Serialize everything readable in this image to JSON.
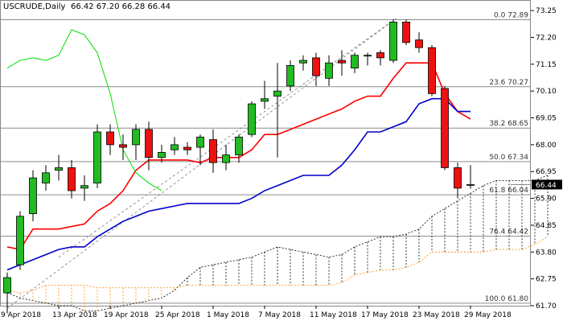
{
  "chart_data": {
    "type": "candlestick",
    "header": {
      "symbol": "USCRUDE,Daily",
      "ohlc_text": "66.42 67.20 66.28 66.44"
    },
    "y_axis": {
      "min": 61.7,
      "max": 73.6,
      "ticks": [
        "73.25",
        "72.20",
        "71.15",
        "70.10",
        "69.05",
        "68.00",
        "66.95",
        "65.90",
        "64.85",
        "63.80",
        "62.75",
        "61.70"
      ]
    },
    "current_price": "66.44",
    "x_axis_labels": [
      {
        "text": "9 Apr 2018",
        "index": 0
      },
      {
        "text": "13 Apr 2018",
        "index": 4
      },
      {
        "text": "19 Apr 2018",
        "index": 8
      },
      {
        "text": "25 Apr 2018",
        "index": 12
      },
      {
        "text": "1 May 2018",
        "index": 16
      },
      {
        "text": "7 May 2018",
        "index": 20
      },
      {
        "text": "11 May 2018",
        "index": 24
      },
      {
        "text": "17 May 2018",
        "index": 28
      },
      {
        "text": "23 May 2018",
        "index": 32
      },
      {
        "text": "29 May 2018",
        "index": 36
      }
    ],
    "fib_levels": [
      {
        "label": "0.0 72.89",
        "price": 72.89
      },
      {
        "label": "23.6 70.27",
        "price": 70.27
      },
      {
        "label": "38.2 68.65",
        "price": 68.65
      },
      {
        "label": "50.0 67.34",
        "price": 67.34
      },
      {
        "label": "61.8 66.04",
        "price": 66.04
      },
      {
        "label": "76.4 64.42",
        "price": 64.42
      },
      {
        "label": "100.0 61.80",
        "price": 61.8
      }
    ],
    "candles": [
      {
        "o": 62.2,
        "h": 63.0,
        "l": 61.4,
        "c": 62.8
      },
      {
        "o": 63.3,
        "h": 65.4,
        "l": 63.1,
        "c": 65.2
      },
      {
        "o": 65.3,
        "h": 67.0,
        "l": 65.0,
        "c": 66.7
      },
      {
        "o": 66.5,
        "h": 67.2,
        "l": 66.2,
        "c": 66.9
      },
      {
        "o": 67.0,
        "h": 67.6,
        "l": 66.6,
        "c": 67.1
      },
      {
        "o": 67.1,
        "h": 67.4,
        "l": 65.9,
        "c": 66.2
      },
      {
        "o": 66.3,
        "h": 66.8,
        "l": 65.8,
        "c": 66.4
      },
      {
        "o": 66.5,
        "h": 68.8,
        "l": 66.3,
        "c": 68.5
      },
      {
        "o": 68.5,
        "h": 68.8,
        "l": 67.6,
        "c": 68.0
      },
      {
        "o": 68.0,
        "h": 68.4,
        "l": 67.4,
        "c": 67.9
      },
      {
        "o": 68.0,
        "h": 68.8,
        "l": 67.4,
        "c": 68.6
      },
      {
        "o": 68.6,
        "h": 68.9,
        "l": 67.0,
        "c": 67.5
      },
      {
        "o": 67.5,
        "h": 68.0,
        "l": 67.3,
        "c": 67.7
      },
      {
        "o": 67.8,
        "h": 68.3,
        "l": 67.6,
        "c": 68.0
      },
      {
        "o": 67.9,
        "h": 68.1,
        "l": 67.6,
        "c": 67.8
      },
      {
        "o": 67.9,
        "h": 68.4,
        "l": 67.2,
        "c": 68.3
      },
      {
        "o": 68.2,
        "h": 68.6,
        "l": 66.9,
        "c": 67.3
      },
      {
        "o": 67.3,
        "h": 68.0,
        "l": 67.0,
        "c": 67.6
      },
      {
        "o": 67.6,
        "h": 68.4,
        "l": 67.3,
        "c": 68.3
      },
      {
        "o": 68.4,
        "h": 69.7,
        "l": 68.3,
        "c": 69.6
      },
      {
        "o": 69.7,
        "h": 70.5,
        "l": 69.4,
        "c": 69.8
      },
      {
        "o": 69.9,
        "h": 71.2,
        "l": 67.5,
        "c": 70.1
      },
      {
        "o": 70.3,
        "h": 71.3,
        "l": 70.1,
        "c": 71.1
      },
      {
        "o": 71.2,
        "h": 71.5,
        "l": 70.9,
        "c": 71.3
      },
      {
        "o": 71.4,
        "h": 71.6,
        "l": 70.3,
        "c": 70.7
      },
      {
        "o": 70.6,
        "h": 71.5,
        "l": 70.3,
        "c": 71.2
      },
      {
        "o": 71.3,
        "h": 71.7,
        "l": 70.7,
        "c": 71.2
      },
      {
        "o": 71.0,
        "h": 71.6,
        "l": 70.8,
        "c": 71.5
      },
      {
        "o": 71.5,
        "h": 71.6,
        "l": 71.1,
        "c": 71.5
      },
      {
        "o": 71.6,
        "h": 71.7,
        "l": 71.1,
        "c": 71.4
      },
      {
        "o": 71.3,
        "h": 72.9,
        "l": 71.2,
        "c": 72.8
      },
      {
        "o": 72.8,
        "h": 72.9,
        "l": 71.9,
        "c": 72.0
      },
      {
        "o": 72.1,
        "h": 72.4,
        "l": 71.6,
        "c": 71.8
      },
      {
        "o": 71.8,
        "h": 71.9,
        "l": 69.9,
        "c": 70.0
      },
      {
        "o": 70.2,
        "h": 70.3,
        "l": 67.0,
        "c": 67.1
      },
      {
        "o": 67.1,
        "h": 67.3,
        "l": 65.9,
        "c": 66.3
      },
      {
        "o": 66.42,
        "h": 67.2,
        "l": 66.28,
        "c": 66.44
      }
    ],
    "series": [
      {
        "name": "",
        "color": "#ff0000",
        "start": 0,
        "values": [
          64.0,
          63.9,
          64.7,
          64.7,
          64.7,
          64.8,
          64.9,
          65.4,
          65.7,
          66.2,
          67.0,
          67.4,
          67.4,
          67.4,
          67.4,
          67.3,
          67.5,
          67.5,
          67.5,
          67.8,
          68.4,
          68.4,
          68.6,
          68.8,
          69.0,
          69.2,
          69.4,
          69.7,
          69.9,
          69.9,
          70.6,
          71.2,
          71.2,
          71.2,
          70.0,
          69.3,
          69.0
        ]
      },
      {
        "name": "",
        "color": "#0000cc",
        "start": 0,
        "values": [
          63.1,
          63.3,
          63.5,
          63.7,
          63.9,
          64.0,
          64.0,
          64.4,
          64.7,
          65.0,
          65.2,
          65.4,
          65.5,
          65.6,
          65.7,
          65.7,
          65.7,
          65.7,
          65.7,
          65.9,
          66.2,
          66.4,
          66.6,
          66.8,
          66.8,
          66.8,
          67.2,
          67.8,
          68.5,
          68.5,
          68.7,
          68.9,
          69.6,
          69.8,
          69.8,
          69.3,
          69.3
        ]
      },
      {
        "name": "",
        "color": "#00dd00",
        "start": 0,
        "values": [
          71.0,
          71.3,
          71.4,
          71.3,
          71.5,
          72.5,
          72.3,
          71.6,
          70.0,
          67.8,
          66.9,
          66.5,
          66.2
        ]
      }
    ],
    "cloud": {
      "start": 0,
      "span_a": [
        62.2,
        62.0,
        61.9,
        61.8,
        61.7,
        61.7,
        61.5,
        61.5,
        61.6,
        61.7,
        61.8,
        61.9,
        62.0,
        62.3,
        62.8,
        63.2,
        63.3,
        63.4,
        63.5,
        63.6,
        63.8,
        64.0,
        63.9,
        63.8,
        63.7,
        63.6,
        63.7,
        64.0,
        64.2,
        64.4,
        64.4,
        64.5,
        64.7,
        65.2,
        65.5,
        65.8,
        66.1,
        66.4,
        66.6,
        66.6,
        66.6,
        66.6,
        66.8
      ],
      "span_b": [
        62.3,
        62.2,
        62.3,
        62.5,
        62.5,
        62.5,
        62.5,
        62.4,
        62.4,
        62.4,
        62.4,
        62.4,
        62.4,
        62.4,
        62.5,
        62.5,
        62.5,
        62.5,
        62.5,
        62.5,
        62.5,
        62.5,
        62.5,
        62.5,
        62.5,
        62.5,
        62.6,
        62.9,
        63.0,
        63.1,
        63.1,
        63.2,
        63.4,
        63.8,
        63.8,
        63.8,
        63.8,
        63.8,
        63.9,
        63.9,
        63.9,
        64.1,
        64.4
      ]
    }
  }
}
